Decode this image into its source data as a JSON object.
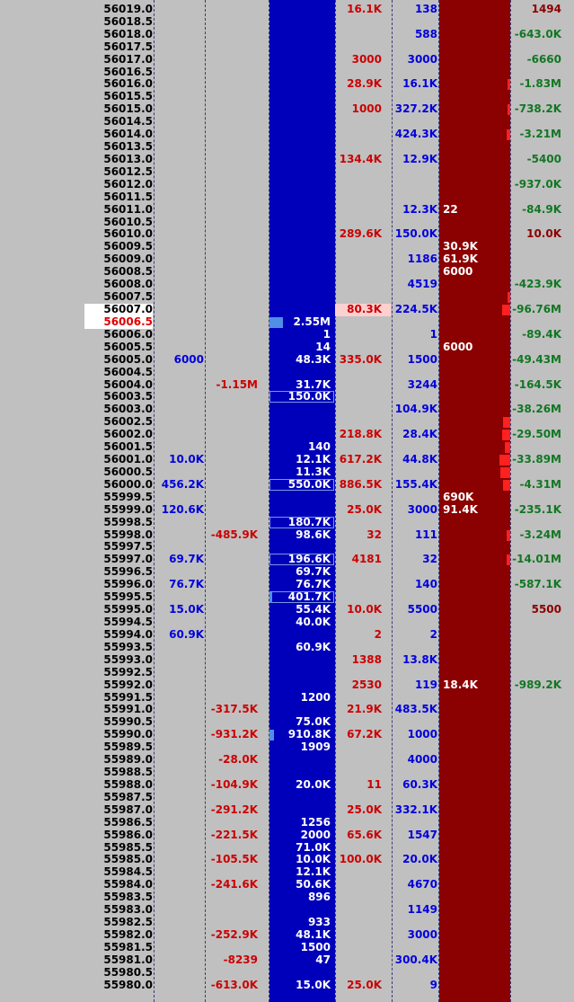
{
  "colors": {
    "background": "#c0c0c0",
    "bid_column": "#0000bb",
    "ask_column": "#8b0000",
    "sell_text": "#cc0000",
    "buy_text": "#0000dd",
    "delta_neg": "#117722",
    "delta_dark": "#8b0000"
  },
  "ladder": {
    "current_ask": "56007.0",
    "current_bid": "56006.5",
    "rows": [
      {
        "price": "56019.5",
        "c1": "",
        "c2": "",
        "bid": "",
        "sold": "",
        "bought": "",
        "ask": "",
        "delta": ""
      },
      {
        "price": "56019.0",
        "c1": "",
        "c2": "",
        "bid": "",
        "sold": "16.1K",
        "bought": "138",
        "ask": "",
        "delta": "1494",
        "dt": "dark",
        "ra": 0.0
      },
      {
        "price": "56018.5",
        "c1": "",
        "c2": "",
        "bid": "",
        "sold": "",
        "bought": "",
        "ask": "",
        "delta": ""
      },
      {
        "price": "56018.0",
        "c1": "",
        "c2": "",
        "bid": "",
        "sold": "",
        "bought": "588",
        "ask": "",
        "delta": "-643.0K",
        "dt": "neg"
      },
      {
        "price": "56017.5",
        "c1": "",
        "c2": "",
        "bid": "",
        "sold": "",
        "bought": "",
        "ask": "",
        "delta": ""
      },
      {
        "price": "56017.0",
        "c1": "",
        "c2": "",
        "bid": "",
        "sold": "3000",
        "bought": "3000",
        "ask": "",
        "delta": "-6660",
        "dt": "neg"
      },
      {
        "price": "56016.5",
        "c1": "",
        "c2": "",
        "bid": "",
        "sold": "",
        "bought": "",
        "ask": "",
        "delta": ""
      },
      {
        "price": "56016.0",
        "c1": "",
        "c2": "",
        "bid": "",
        "sold": "28.9K",
        "bought": "16.1K",
        "ask": "",
        "delta": "-1.83M",
        "dt": "neg",
        "ra": 0.04
      },
      {
        "price": "56015.5",
        "c1": "",
        "c2": "",
        "bid": "",
        "sold": "",
        "bought": "",
        "ask": "",
        "delta": ""
      },
      {
        "price": "56015.0",
        "c1": "",
        "c2": "",
        "bid": "",
        "sold": "1000",
        "bought": "327.2K",
        "ask": "",
        "delta": "-738.2K",
        "dt": "neg",
        "ra": 0.02
      },
      {
        "price": "56014.5",
        "c1": "",
        "c2": "",
        "bid": "",
        "sold": "",
        "bought": "",
        "ask": "",
        "delta": ""
      },
      {
        "price": "56014.0",
        "c1": "",
        "c2": "",
        "bid": "",
        "sold": "",
        "bought": "424.3K",
        "ask": "",
        "delta": "-3.21M",
        "dt": "neg",
        "ra": 0.05
      },
      {
        "price": "56013.5",
        "c1": "",
        "c2": "",
        "bid": "",
        "sold": "",
        "bought": "",
        "ask": "",
        "delta": ""
      },
      {
        "price": "56013.0",
        "c1": "",
        "c2": "",
        "bid": "",
        "sold": "134.4K",
        "bought": "12.9K",
        "ask": "",
        "delta": "-5400",
        "dt": "neg"
      },
      {
        "price": "56012.5",
        "c1": "",
        "c2": "",
        "bid": "",
        "sold": "",
        "bought": "",
        "ask": "",
        "delta": ""
      },
      {
        "price": "56012.0",
        "c1": "",
        "c2": "",
        "bid": "",
        "sold": "",
        "bought": "",
        "ask": "",
        "delta": "-937.0K",
        "dt": "neg"
      },
      {
        "price": "56011.5",
        "c1": "",
        "c2": "",
        "bid": "",
        "sold": "",
        "bought": "",
        "ask": "",
        "delta": ""
      },
      {
        "price": "56011.0",
        "c1": "",
        "c2": "",
        "bid": "",
        "sold": "",
        "bought": "12.3K",
        "ask": "22",
        "delta": "-84.9K",
        "dt": "neg"
      },
      {
        "price": "56010.5",
        "c1": "",
        "c2": "",
        "bid": "",
        "sold": "",
        "bought": "",
        "ask": "",
        "delta": ""
      },
      {
        "price": "56010.0",
        "c1": "",
        "c2": "",
        "bid": "",
        "sold": "289.6K",
        "bought": "150.0K",
        "ask": "",
        "delta": "10.0K",
        "dt": "dark"
      },
      {
        "price": "56009.5",
        "c1": "",
        "c2": "",
        "bid": "",
        "sold": "",
        "bought": "",
        "ask": "30.9K",
        "delta": ""
      },
      {
        "price": "56009.0",
        "c1": "",
        "c2": "",
        "bid": "",
        "sold": "",
        "bought": "1186",
        "ask": "61.9K",
        "delta": ""
      },
      {
        "price": "56008.5",
        "c1": "",
        "c2": "",
        "bid": "",
        "sold": "",
        "bought": "",
        "ask": "6000",
        "delta": ""
      },
      {
        "price": "56008.0",
        "c1": "",
        "c2": "",
        "bid": "",
        "sold": "",
        "bought": "4519",
        "ask": "",
        "delta": "-423.9K",
        "dt": "neg"
      },
      {
        "price": "56007.5",
        "c1": "",
        "c2": "",
        "bid": "",
        "sold": "",
        "bought": "",
        "ask": "",
        "delta": "",
        "ra": 0.03
      },
      {
        "price": "56007.0",
        "c1": "",
        "c2": "",
        "bid": "",
        "sold": "80.3K",
        "bought": "224.5K",
        "ask": "",
        "delta": "-96.76M",
        "dt": "neg",
        "cur": "ask",
        "ra": 0.12
      },
      {
        "price": "56006.5",
        "c1": "",
        "c2": "",
        "bid": "2.55M",
        "sold": "",
        "bought": "",
        "ask": "",
        "delta": "",
        "cur": "bid",
        "hb": 0.2
      },
      {
        "price": "56006.0",
        "c1": "",
        "c2": "",
        "bid": "1",
        "sold": "",
        "bought": "1",
        "ask": "",
        "delta": "-89.4K",
        "dt": "neg"
      },
      {
        "price": "56005.5",
        "c1": "",
        "c2": "",
        "bid": "14",
        "sold": "",
        "bought": "",
        "ask": "6000",
        "delta": ""
      },
      {
        "price": "56005.0",
        "c1": "6000",
        "c2": "",
        "bid": "48.3K",
        "sold": "335.0K",
        "bought": "1500",
        "ask": "",
        "delta": "-49.43M",
        "dt": "neg"
      },
      {
        "price": "56004.5",
        "c1": "",
        "c2": "",
        "bid": "",
        "sold": "",
        "bought": "",
        "ask": "",
        "delta": ""
      },
      {
        "price": "56004.0",
        "c1": "",
        "c2": "-1.15M",
        "ct": "neg",
        "bid": "31.7K",
        "sold": "",
        "bought": "3244",
        "ask": "",
        "delta": "-164.5K",
        "dt": "neg"
      },
      {
        "price": "56003.5",
        "c1": "",
        "c2": "",
        "bid": "150.0K",
        "sold": "",
        "bought": "",
        "ask": "",
        "delta": "",
        "box": true
      },
      {
        "price": "56003.0",
        "c1": "",
        "c2": "",
        "bid": "",
        "sold": "",
        "bought": "104.9K",
        "ask": "",
        "delta": "-38.26M",
        "dt": "neg"
      },
      {
        "price": "56002.5",
        "c1": "",
        "c2": "",
        "bid": "",
        "sold": "",
        "bought": "",
        "ask": "",
        "delta": "",
        "ra": 0.1
      },
      {
        "price": "56002.0",
        "c1": "",
        "c2": "",
        "bid": "",
        "sold": "218.8K",
        "bought": "28.4K",
        "ask": "",
        "delta": "-29.50M",
        "dt": "neg",
        "ra": 0.12
      },
      {
        "price": "56001.5",
        "c1": "",
        "c2": "",
        "bid": "140",
        "sold": "",
        "bought": "",
        "ask": "",
        "delta": "",
        "ra": 0.08
      },
      {
        "price": "56001.0",
        "c1": "10.0K",
        "c2": "",
        "bid": "12.1K",
        "sold": "617.2K",
        "bought": "44.8K",
        "ask": "",
        "delta": "-33.89M",
        "dt": "neg",
        "ra": 0.15
      },
      {
        "price": "56000.5",
        "c1": "",
        "c2": "",
        "bid": "11.3K",
        "sold": "",
        "bought": "",
        "ask": "",
        "delta": "",
        "ra": 0.14
      },
      {
        "price": "56000.0",
        "c1": "456.2K",
        "c2": "",
        "bid": "550.0K",
        "sold": "886.5K",
        "bought": "155.4K",
        "ask": "",
        "delta": "-4.31M",
        "dt": "neg",
        "box": true,
        "ra": 0.1
      },
      {
        "price": "55999.5",
        "c1": "",
        "c2": "",
        "bid": "",
        "sold": "",
        "bought": "",
        "ask": "690K",
        "delta": ""
      },
      {
        "price": "55999.0",
        "c1": "120.6K",
        "c2": "",
        "bid": "",
        "sold": "25.0K",
        "bought": "3000",
        "ask": "91.4K",
        "delta": "-235.1K",
        "dt": "neg"
      },
      {
        "price": "55998.5",
        "c1": "",
        "c2": "",
        "bid": "180.7K",
        "sold": "",
        "bought": "",
        "ask": "",
        "delta": "",
        "box": true
      },
      {
        "price": "55998.0",
        "c1": "",
        "c2": "-485.9K",
        "ct": "neg",
        "bid": "98.6K",
        "sold": "32",
        "bought": "111",
        "ask": "",
        "delta": "-3.24M",
        "dt": "neg",
        "ra": 0.05
      },
      {
        "price": "55997.5",
        "c1": "",
        "c2": "",
        "bid": "",
        "sold": "",
        "bought": "",
        "ask": "",
        "delta": ""
      },
      {
        "price": "55997.0",
        "c1": "69.7K",
        "c2": "",
        "bid": "196.6K",
        "sold": "4181",
        "bought": "32",
        "ask": "",
        "delta": "-14.01M",
        "dt": "neg",
        "box": true,
        "ra": 0.05
      },
      {
        "price": "55996.5",
        "c1": "",
        "c2": "",
        "bid": "69.7K",
        "sold": "",
        "bought": "",
        "ask": "",
        "delta": ""
      },
      {
        "price": "55996.0",
        "c1": "76.7K",
        "c2": "",
        "bid": "76.7K",
        "sold": "",
        "bought": "140",
        "ask": "",
        "delta": "-587.1K",
        "dt": "neg"
      },
      {
        "price": "55995.5",
        "c1": "",
        "c2": "",
        "bid": "401.7K",
        "sold": "",
        "bought": "",
        "ask": "",
        "delta": "",
        "box": true,
        "hb": 0.03
      },
      {
        "price": "55995.0",
        "c1": "15.0K",
        "c2": "",
        "bid": "55.4K",
        "sold": "10.0K",
        "bought": "5500",
        "ask": "",
        "delta": "5500",
        "dt": "dark"
      },
      {
        "price": "55994.5",
        "c1": "",
        "c2": "",
        "bid": "40.0K",
        "sold": "",
        "bought": "",
        "ask": "",
        "delta": ""
      },
      {
        "price": "55994.0",
        "c1": "60.9K",
        "c2": "",
        "bid": "",
        "sold": "2",
        "bought": "2",
        "ask": "",
        "delta": ""
      },
      {
        "price": "55993.5",
        "c1": "",
        "c2": "",
        "bid": "60.9K",
        "sold": "",
        "bought": "",
        "ask": "",
        "delta": ""
      },
      {
        "price": "55993.0",
        "c1": "",
        "c2": "",
        "bid": "",
        "sold": "1388",
        "bought": "13.8K",
        "ask": "",
        "delta": ""
      },
      {
        "price": "55992.5",
        "c1": "",
        "c2": "",
        "bid": "",
        "sold": "",
        "bought": "",
        "ask": "",
        "delta": ""
      },
      {
        "price": "55992.0",
        "c1": "",
        "c2": "",
        "bid": "",
        "sold": "2530",
        "bought": "119",
        "ask": "18.4K",
        "delta": "-989.2K",
        "dt": "neg"
      },
      {
        "price": "55991.5",
        "c1": "",
        "c2": "",
        "bid": "1200",
        "sold": "",
        "bought": "",
        "ask": "",
        "delta": ""
      },
      {
        "price": "55991.0",
        "c1": "",
        "c2": "-317.5K",
        "ct": "neg",
        "bid": "",
        "sold": "21.9K",
        "bought": "483.5K",
        "ask": "",
        "delta": ""
      },
      {
        "price": "55990.5",
        "c1": "",
        "c2": "",
        "bid": "75.0K",
        "sold": "",
        "bought": "",
        "ask": "",
        "delta": ""
      },
      {
        "price": "55990.0",
        "c1": "",
        "c2": "-931.2K",
        "ct": "neg",
        "bid": "910.8K",
        "sold": "67.2K",
        "bought": "1000",
        "ask": "",
        "delta": "",
        "hb": 0.07
      },
      {
        "price": "55989.5",
        "c1": "",
        "c2": "",
        "bid": "1909",
        "sold": "",
        "bought": "",
        "ask": "",
        "delta": ""
      },
      {
        "price": "55989.0",
        "c1": "",
        "c2": "-28.0K",
        "ct": "neg",
        "bid": "",
        "sold": "",
        "bought": "4000",
        "ask": "",
        "delta": ""
      },
      {
        "price": "55988.5",
        "c1": "",
        "c2": "",
        "bid": "",
        "sold": "",
        "bought": "",
        "ask": "",
        "delta": ""
      },
      {
        "price": "55988.0",
        "c1": "",
        "c2": "-104.9K",
        "ct": "neg",
        "bid": "20.0K",
        "sold": "11",
        "bought": "60.3K",
        "ask": "",
        "delta": ""
      },
      {
        "price": "55987.5",
        "c1": "",
        "c2": "",
        "bid": "",
        "sold": "",
        "bought": "",
        "ask": "",
        "delta": ""
      },
      {
        "price": "55987.0",
        "c1": "",
        "c2": "-291.2K",
        "ct": "neg",
        "bid": "",
        "sold": "25.0K",
        "bought": "332.1K",
        "ask": "",
        "delta": ""
      },
      {
        "price": "55986.5",
        "c1": "",
        "c2": "",
        "bid": "1256",
        "sold": "",
        "bought": "",
        "ask": "",
        "delta": ""
      },
      {
        "price": "55986.0",
        "c1": "",
        "c2": "-221.5K",
        "ct": "neg",
        "bid": "2000",
        "sold": "65.6K",
        "bought": "1547",
        "ask": "",
        "delta": ""
      },
      {
        "price": "55985.5",
        "c1": "",
        "c2": "",
        "bid": "71.0K",
        "sold": "",
        "bought": "",
        "ask": "",
        "delta": ""
      },
      {
        "price": "55985.0",
        "c1": "",
        "c2": "-105.5K",
        "ct": "neg",
        "bid": "10.0K",
        "sold": "100.0K",
        "bought": "20.0K",
        "ask": "",
        "delta": ""
      },
      {
        "price": "55984.5",
        "c1": "",
        "c2": "",
        "bid": "12.1K",
        "sold": "",
        "bought": "",
        "ask": "",
        "delta": ""
      },
      {
        "price": "55984.0",
        "c1": "",
        "c2": "-241.6K",
        "ct": "neg",
        "bid": "50.6K",
        "sold": "",
        "bought": "4670",
        "ask": "",
        "delta": ""
      },
      {
        "price": "55983.5",
        "c1": "",
        "c2": "",
        "bid": "896",
        "sold": "",
        "bought": "",
        "ask": "",
        "delta": ""
      },
      {
        "price": "55983.0",
        "c1": "",
        "c2": "",
        "bid": "",
        "sold": "",
        "bought": "1149",
        "ask": "",
        "delta": ""
      },
      {
        "price": "55982.5",
        "c1": "",
        "c2": "",
        "bid": "933",
        "sold": "",
        "bought": "",
        "ask": "",
        "delta": ""
      },
      {
        "price": "55982.0",
        "c1": "",
        "c2": "-252.9K",
        "ct": "neg",
        "bid": "48.1K",
        "sold": "",
        "bought": "3000",
        "ask": "",
        "delta": ""
      },
      {
        "price": "55981.5",
        "c1": "",
        "c2": "",
        "bid": "1500",
        "sold": "",
        "bought": "",
        "ask": "",
        "delta": ""
      },
      {
        "price": "55981.0",
        "c1": "",
        "c2": "-8239",
        "ct": "neg",
        "bid": "47",
        "sold": "",
        "bought": "300.4K",
        "ask": "",
        "delta": ""
      },
      {
        "price": "55980.5",
        "c1": "",
        "c2": "",
        "bid": "",
        "sold": "",
        "bought": "",
        "ask": "",
        "delta": ""
      },
      {
        "price": "55980.0",
        "c1": "",
        "c2": "-613.0K",
        "ct": "neg",
        "bid": "15.0K",
        "sold": "25.0K",
        "bought": "9",
        "ask": "",
        "delta": ""
      }
    ]
  }
}
